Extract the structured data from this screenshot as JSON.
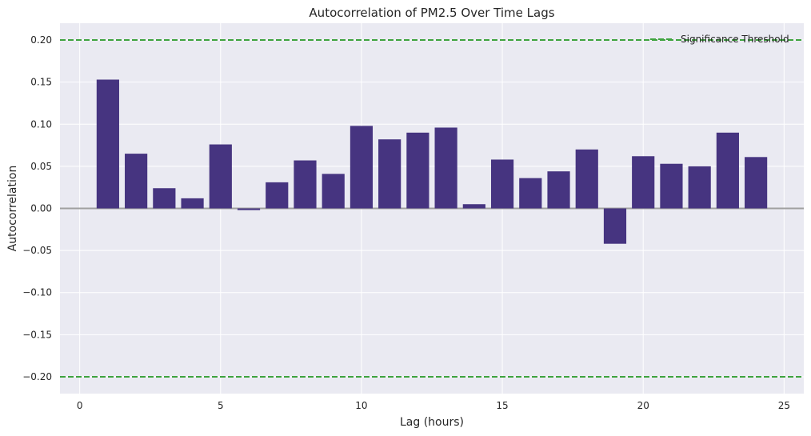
{
  "chart_data": {
    "type": "bar",
    "title": "Autocorrelation of PM2.5 Over Time Lags",
    "xlabel": "Lag (hours)",
    "ylabel": "Autocorrelation",
    "x": [
      1,
      2,
      3,
      4,
      5,
      6,
      7,
      8,
      9,
      10,
      11,
      12,
      13,
      14,
      15,
      16,
      17,
      18,
      19,
      20,
      21,
      22,
      23,
      24
    ],
    "values": [
      0.153,
      0.065,
      0.024,
      0.012,
      0.076,
      -0.002,
      0.031,
      0.057,
      0.041,
      0.098,
      0.082,
      0.09,
      0.096,
      0.005,
      0.058,
      0.036,
      0.044,
      0.07,
      -0.042,
      0.062,
      0.053,
      0.05,
      0.09,
      0.061
    ],
    "xlim": [
      -0.7,
      25.7
    ],
    "ylim": [
      -0.22,
      0.22
    ],
    "xticks": [
      0,
      5,
      10,
      15,
      20,
      25
    ],
    "yticks": [
      -0.2,
      -0.15,
      -0.1,
      -0.05,
      0.0,
      0.05,
      0.1,
      0.15,
      0.2
    ],
    "ytick_labels": [
      "−0.20",
      "−0.15",
      "−0.10",
      "−0.05",
      "0.00",
      "0.05",
      "0.10",
      "0.15",
      "0.20"
    ],
    "bar_color": "#463480",
    "thresholds": [
      0.2,
      -0.2
    ],
    "threshold_color": "#3fa33f",
    "zero_line_color": "#a0a0a0",
    "plot_background": "#eaeaf2",
    "grid": true,
    "legend": {
      "position": "top-right",
      "entries": [
        "Significance Threshold"
      ]
    }
  }
}
